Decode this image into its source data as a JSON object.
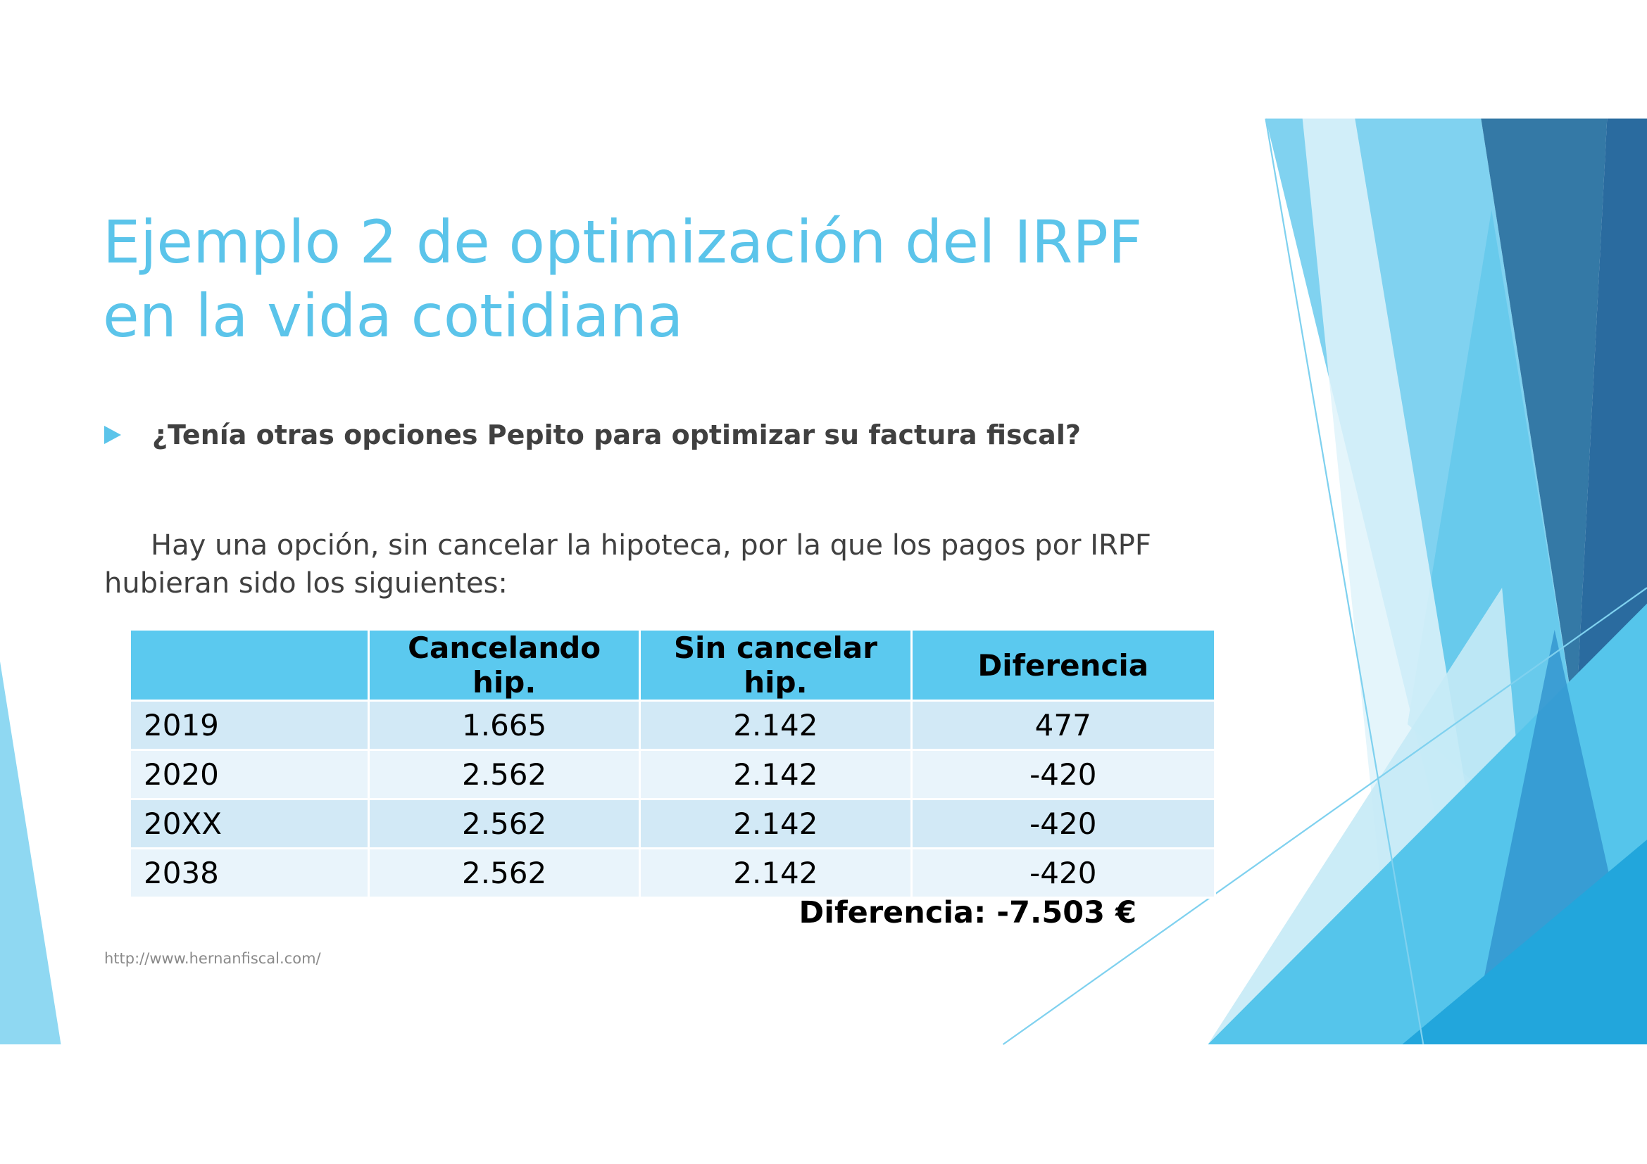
{
  "slide": {
    "title": "Ejemplo 2 de optimización del IRPF en la vida cotidiana",
    "bullet": "¿Tenía otras opciones Pepito para optimizar su factura fiscal?",
    "paragraph": "Hay una opción, sin cancelar la hipoteca, por la que los pagos por IRPF hubieran sido los siguientes:",
    "table": {
      "headers": [
        "",
        "Cancelando hip.",
        "Sin cancelar hip.",
        "Diferencia"
      ],
      "rows": [
        [
          "2019",
          "1.665",
          "2.142",
          "477"
        ],
        [
          "2020",
          "2.562",
          "2.142",
          "-420"
        ],
        [
          "20XX",
          "2.562",
          "2.142",
          "-420"
        ],
        [
          "2038",
          "2.562",
          "2.142",
          "-420"
        ]
      ]
    },
    "total": "Diferencia: -7.503 €",
    "footer": "http://www.hernanfiscal.com/"
  },
  "colors": {
    "accent": "#5bc4ea",
    "header": "#5bc9ef",
    "row_odd": "#d2e9f6",
    "row_even": "#e9f4fb",
    "dark_blue": "#2a6b9f"
  },
  "icons": {
    "bullet": "triangle-right-icon"
  }
}
